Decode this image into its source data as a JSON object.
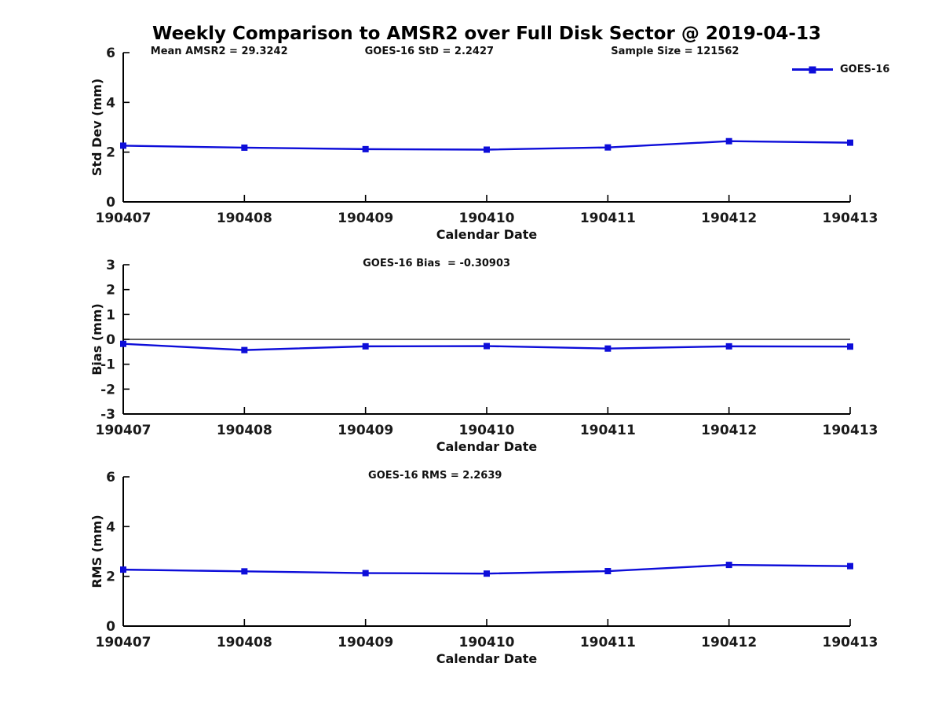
{
  "title": "Weekly Comparison to AMSR2 over Full Disk Sector @ 2019-04-13",
  "colors": {
    "line": "#0d0dd9",
    "axis": "#000000",
    "text": "#1a1a1a"
  },
  "legend": {
    "label": "GOES-16",
    "marker": "filled-square"
  },
  "chart_data": [
    {
      "type": "line",
      "name": "std-dev",
      "ylabel": "Std Dev (mm)",
      "xlabel": "Calendar Date",
      "categories": [
        "190407",
        "190408",
        "190409",
        "190410",
        "190411",
        "190412",
        "190413"
      ],
      "series": [
        {
          "name": "GOES-16",
          "values": [
            2.26,
            2.18,
            2.12,
            2.1,
            2.19,
            2.44,
            2.38
          ]
        }
      ],
      "ylim": [
        0,
        6
      ],
      "yticks": [
        0,
        2,
        4,
        6
      ],
      "zero_line": false,
      "grid": false,
      "legend_position": "top-right",
      "annotations": [
        "Mean AMSR2 = 29.3242",
        "GOES-16 StD = 2.2427",
        "Sample Size = 121562"
      ]
    },
    {
      "type": "line",
      "name": "bias",
      "ylabel": "Bias (mm)",
      "xlabel": "Calendar Date",
      "categories": [
        "190407",
        "190408",
        "190409",
        "190410",
        "190411",
        "190412",
        "190413"
      ],
      "series": [
        {
          "name": "GOES-16",
          "values": [
            -0.18,
            -0.43,
            -0.28,
            -0.27,
            -0.37,
            -0.28,
            -0.29
          ]
        }
      ],
      "ylim": [
        -3,
        3
      ],
      "yticks": [
        -3,
        -2,
        -1,
        0,
        1,
        2,
        3
      ],
      "zero_line": true,
      "grid": false,
      "annotations": [
        "GOES-16 Bias  = -0.30903"
      ]
    },
    {
      "type": "line",
      "name": "rms",
      "ylabel": "RMS (mm)",
      "xlabel": "Calendar Date",
      "categories": [
        "190407",
        "190408",
        "190409",
        "190410",
        "190411",
        "190412",
        "190413"
      ],
      "series": [
        {
          "name": "GOES-16",
          "values": [
            2.27,
            2.2,
            2.13,
            2.11,
            2.21,
            2.46,
            2.41
          ]
        }
      ],
      "ylim": [
        0,
        6
      ],
      "yticks": [
        0,
        2,
        4,
        6
      ],
      "zero_line": false,
      "grid": false,
      "annotations": [
        "GOES-16 RMS = 2.2639"
      ]
    }
  ]
}
